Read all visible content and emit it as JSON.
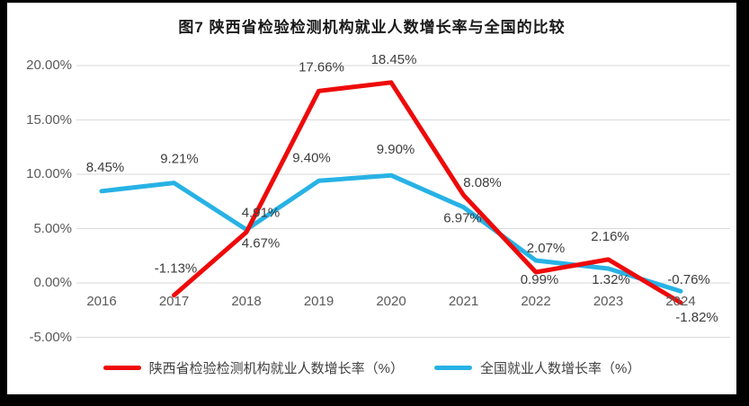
{
  "figure": {
    "title": "图7 陕西省检验检测机构就业人数增长率与全国的比较"
  },
  "chart_data": {
    "type": "line",
    "title": "图7 陕西省检验检测机构就业人数增长率与全国的比较",
    "categories": [
      "2016",
      "2017",
      "2018",
      "2019",
      "2020",
      "2021",
      "2022",
      "2023",
      "2024"
    ],
    "series": [
      {
        "name": "陕西省检验检测机构就业人数增长率（%）",
        "color": "#ee0a0a",
        "values": [
          null,
          -1.13,
          4.67,
          17.66,
          18.45,
          8.08,
          0.99,
          2.16,
          -1.82
        ],
        "labels": [
          null,
          "-1.13%",
          "4.67%",
          "17.66%",
          "18.45%",
          "8.08%",
          "0.99%",
          "2.16%",
          "-1.82%"
        ]
      },
      {
        "name": "全国就业人数增长率（%）",
        "color": "#27b2e5",
        "values": [
          8.45,
          9.21,
          4.91,
          9.4,
          9.9,
          6.97,
          2.07,
          1.32,
          -0.76
        ],
        "labels": [
          "8.45%",
          "9.21%",
          "4.91%",
          "9.40%",
          "9.90%",
          "6.97%",
          "2.07%",
          "1.32%",
          "-0.76%"
        ]
      }
    ],
    "y_axis": {
      "tick_labels": [
        "20.00%",
        "15.00%",
        "10.00%",
        "5.00%",
        "0.00%",
        "-5.00%"
      ],
      "tick_values": [
        20,
        15,
        10,
        5,
        0,
        -5
      ],
      "min": -5,
      "max": 20
    },
    "grid": "horizontal",
    "legend_position": "bottom"
  },
  "colors": {
    "grid": "#d9d9d9",
    "axis_text": "#595959",
    "label_text": "#3d3d3d",
    "frame": "#000000",
    "background": "#ffffff"
  }
}
